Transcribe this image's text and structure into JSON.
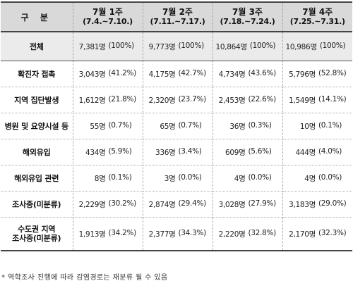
{
  "table": {
    "header": {
      "category_label": "구 분",
      "weeks": [
        {
          "title": "7월 1주",
          "range": "(7.4.~7.10.)"
        },
        {
          "title": "7월 2주",
          "range": "(7.11.~7.17.)"
        },
        {
          "title": "7월 3주",
          "range": "(7.18.~7.24.)"
        },
        {
          "title": "7월 4주",
          "range": "(7.25.~7.31.)"
        }
      ]
    },
    "rows": [
      {
        "label": "전체",
        "cells": [
          {
            "count": "7,381명",
            "pct": "(100%)"
          },
          {
            "count": "9,773명",
            "pct": "(100%)"
          },
          {
            "count": "10,864명",
            "pct": "(100%)"
          },
          {
            "count": "10,986명",
            "pct": "(100%)"
          }
        ]
      },
      {
        "label": "확진자 접촉",
        "cells": [
          {
            "count": "3,043명",
            "pct": "(41.2%)"
          },
          {
            "count": "4,175명",
            "pct": "(42.7%)"
          },
          {
            "count": "4,734명",
            "pct": "(43.6%)"
          },
          {
            "count": "5,796명",
            "pct": "(52.8%)"
          }
        ]
      },
      {
        "label": "지역 집단발생",
        "cells": [
          {
            "count": "1,612명",
            "pct": "(21.8%)"
          },
          {
            "count": "2,320명",
            "pct": "(23.7%)"
          },
          {
            "count": "2,453명",
            "pct": "(22.6%)"
          },
          {
            "count": "1,549명",
            "pct": "(14.1%)"
          }
        ]
      },
      {
        "label": "병원 및 요양시설 등",
        "cells": [
          {
            "count": "55명",
            "pct": "(0.7%)"
          },
          {
            "count": "65명",
            "pct": "(0.7%)"
          },
          {
            "count": "36명",
            "pct": "(0.3%)"
          },
          {
            "count": "10명",
            "pct": "(0.1%)"
          }
        ]
      },
      {
        "label": "해외유입",
        "cells": [
          {
            "count": "434명",
            "pct": "(5.9%)"
          },
          {
            "count": "336명",
            "pct": "(3.4%)"
          },
          {
            "count": "609명",
            "pct": "(5.6%)"
          },
          {
            "count": "444명",
            "pct": "(4.0%)"
          }
        ]
      },
      {
        "label": "해외유입 관련",
        "cells": [
          {
            "count": "8명",
            "pct": "(0.1%)"
          },
          {
            "count": "3명",
            "pct": "(0.0%)"
          },
          {
            "count": "4명",
            "pct": "(0.0%)"
          },
          {
            "count": "4명",
            "pct": "(0.0%)"
          }
        ]
      },
      {
        "label": "조사중(미분류)",
        "cells": [
          {
            "count": "2,229명",
            "pct": "(30.2%)"
          },
          {
            "count": "2,874명",
            "pct": "(29.4%)"
          },
          {
            "count": "3,028명",
            "pct": "(27.9%)"
          },
          {
            "count": "3,183명",
            "pct": "(29.0%)"
          }
        ]
      },
      {
        "label_line1": "수도권 지역",
        "label_line2": "조사중(미분류)",
        "cells": [
          {
            "count": "1,913명",
            "pct": "(34.2%)"
          },
          {
            "count": "2,377명",
            "pct": "(34.3%)"
          },
          {
            "count": "2,220명",
            "pct": "(32.8%)"
          },
          {
            "count": "2,170명",
            "pct": "(32.3%)"
          }
        ]
      }
    ]
  },
  "footnote": "* 역학조사 진행에 따라 감염경로는 재분류 될 수 있음"
}
